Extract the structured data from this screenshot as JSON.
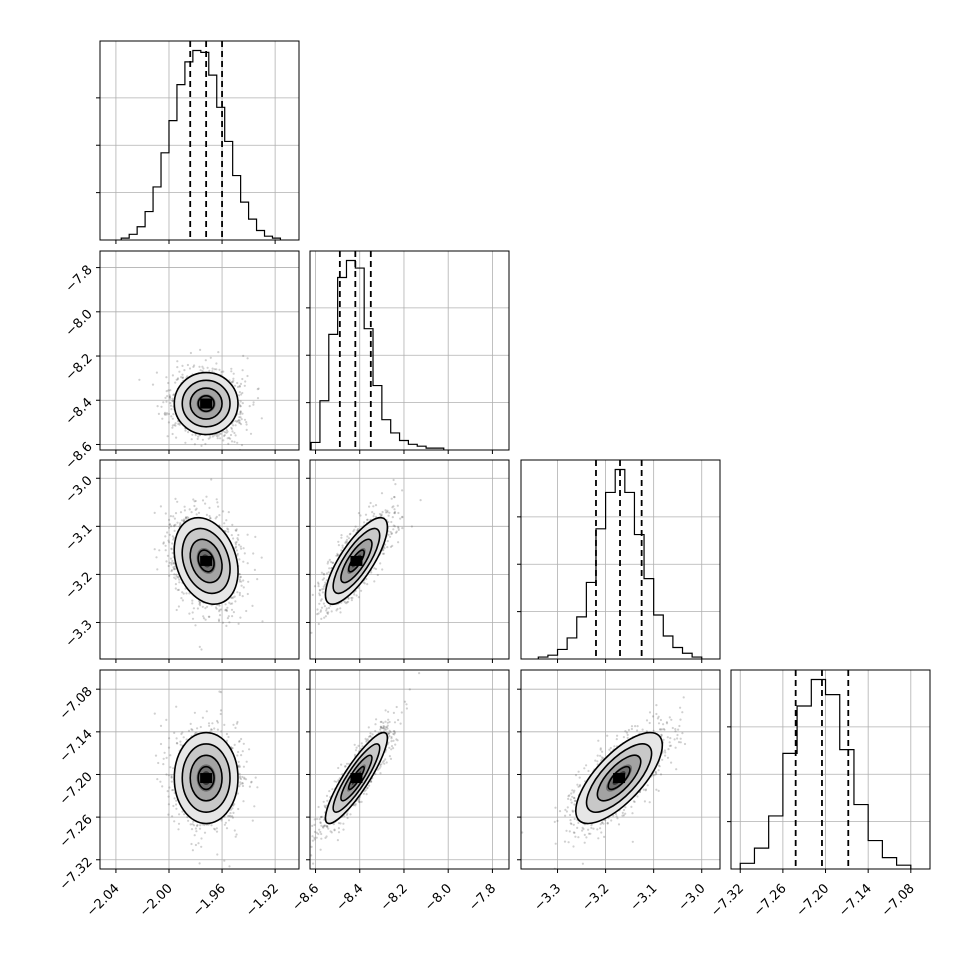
{
  "chart_data": {
    "type": "corner",
    "grid": true,
    "parameters": [
      {
        "range": [
          -2.052,
          -1.902
        ],
        "mean": -1.972,
        "std": 0.012,
        "quantiles": [
          -1.984,
          -1.972,
          -1.96
        ],
        "ticks": [
          -2.04,
          -2.0,
          -1.96,
          -1.92
        ],
        "tick_labels": [
          "−2.04",
          "−2.00",
          "−1.96",
          "−1.92"
        ]
      },
      {
        "range": [
          -8.625,
          -7.725
        ],
        "mean": -8.415,
        "std": 0.07,
        "quantiles": [
          -8.49,
          -8.42,
          -8.35
        ],
        "ticks": [
          -8.6,
          -8.4,
          -8.2,
          -8.0,
          -7.8
        ],
        "tick_labels": [
          "−8.6",
          "−8.4",
          "−8.2",
          "−8.0",
          "−7.8"
        ]
      },
      {
        "range": [
          -3.376,
          -2.962
        ],
        "mean": -3.172,
        "std": 0.045,
        "quantiles": [
          -3.22,
          -3.17,
          -3.125
        ],
        "ticks": [
          -3.3,
          -3.2,
          -3.1,
          -3.0
        ],
        "tick_labels": [
          "−3.3",
          "−3.2",
          "−3.1",
          "−3.0"
        ]
      },
      {
        "range": [
          -7.333,
          -7.053
        ],
        "mean": -7.205,
        "std": 0.032,
        "quantiles": [
          -7.242,
          -7.205,
          -7.168
        ],
        "ticks": [
          -7.32,
          -7.26,
          -7.2,
          -7.14,
          -7.08
        ],
        "tick_labels": [
          "−7.32",
          "−7.26",
          "−7.20",
          "−7.14",
          "−7.08"
        ]
      }
    ],
    "histograms": [
      {
        "param": 0,
        "bin_edges": [
          -2.036,
          -2.03,
          -2.024,
          -2.018,
          -2.012,
          -2.006,
          -2.0,
          -1.994,
          -1.988,
          -1.982,
          -1.976,
          -1.97,
          -1.964,
          -1.958,
          -1.952,
          -1.946,
          -1.94,
          -1.934,
          -1.928,
          -1.922,
          -1.916
        ],
        "counts": [
          1,
          3,
          7,
          15,
          28,
          46,
          63,
          82,
          94,
          100,
          99,
          87,
          70,
          52,
          34,
          20,
          11,
          5,
          2,
          1
        ]
      },
      {
        "param": 1,
        "bin_edges": [
          -8.62,
          -8.58,
          -8.54,
          -8.5,
          -8.46,
          -8.42,
          -8.38,
          -8.34,
          -8.3,
          -8.26,
          -8.22,
          -8.18,
          -8.14,
          -8.1,
          -8.06,
          -8.02
        ],
        "counts": [
          4,
          26,
          61,
          91,
          100,
          96,
          64,
          34,
          16,
          9,
          5,
          3,
          2,
          1,
          1
        ]
      },
      {
        "param": 2,
        "bin_edges": [
          -3.34,
          -3.32,
          -3.3,
          -3.28,
          -3.26,
          -3.24,
          -3.22,
          -3.2,
          -3.18,
          -3.16,
          -3.14,
          -3.12,
          -3.1,
          -3.08,
          -3.06,
          -3.04,
          -3.02,
          -3.0
        ],
        "counts": [
          1,
          2,
          5,
          11,
          22,
          40,
          68,
          87,
          99,
          87,
          65,
          42,
          23,
          12,
          6,
          3,
          1
        ]
      },
      {
        "param": 3,
        "bin_edges": [
          -7.32,
          -7.3,
          -7.28,
          -7.26,
          -7.24,
          -7.22,
          -7.2,
          -7.18,
          -7.16,
          -7.14,
          -7.12,
          -7.1,
          -7.08
        ],
        "counts": [
          3,
          11,
          28,
          61,
          86,
          100,
          92,
          63,
          34,
          15,
          6,
          2
        ]
      }
    ],
    "correlations": {
      "1_0": 0.0,
      "2_0": -0.25,
      "2_1": 0.78,
      "3_0": 0.0,
      "3_1": 0.88,
      "3_2": 0.72
    },
    "contour_levels_sigma": [
      0.5,
      1.0,
      1.5,
      2.0
    ]
  }
}
